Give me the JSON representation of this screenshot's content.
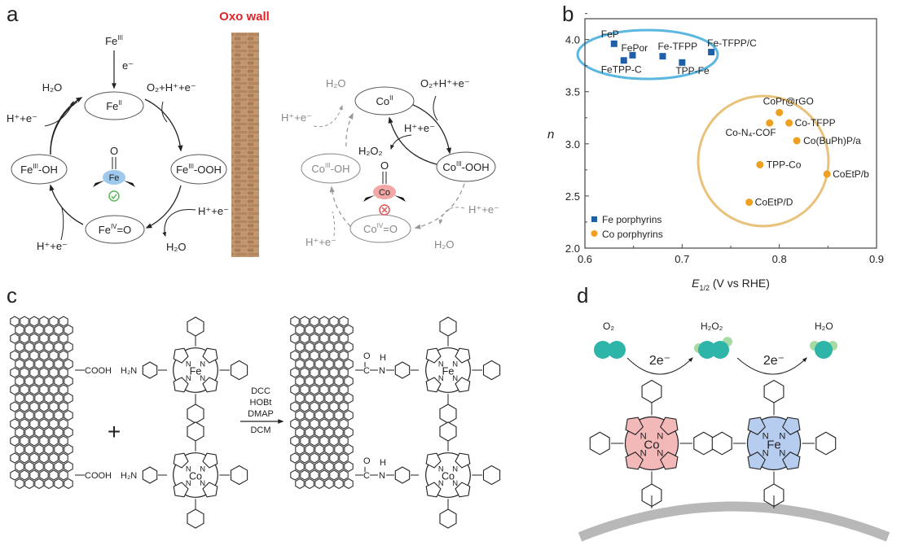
{
  "panels": {
    "a": "a",
    "b": "b",
    "c": "c",
    "d": "d"
  },
  "panel_a": {
    "oxo_wall": "Oxo wall",
    "fe_cycle": {
      "fe_iii": [
        "Fe",
        "III",
        ""
      ],
      "e_minus": "e⁻",
      "fe_ii": [
        "Fe",
        "II",
        ""
      ],
      "fe_iii_ooh": [
        "Fe",
        "III",
        "-OOH"
      ],
      "fe_iii_oh": [
        "Fe",
        "III",
        "-OH"
      ],
      "fe_iv_o": [
        "Fe",
        "IV",
        "=O"
      ],
      "o2_h_e": "O₂+H⁺+e⁻",
      "h_e": "H⁺+e⁻",
      "h2o": "H₂O",
      "center_metal": "Fe",
      "center_oxo": "O",
      "status": "check"
    },
    "co_cycle": {
      "co_ii": [
        "Co",
        "II",
        ""
      ],
      "co_iii_ooh": [
        "Co",
        "III",
        "-OOH"
      ],
      "co_iii_oh": [
        "Co",
        "III",
        "-OH"
      ],
      "co_iv_o": [
        "Co",
        "IV",
        "=O"
      ],
      "o2_h_e": "O₂+H⁺+e⁻",
      "h_e": "H⁺+e⁻",
      "h2o": "H₂O",
      "h2o2": "H₂O₂",
      "center_metal": "Co",
      "center_oxo": "O",
      "status": "cross"
    },
    "colors": {
      "wall_label": "#e0242a",
      "fe_highlight": "#9ec9ec",
      "co_highlight": "#f2a6a6",
      "check": "#5cb85c",
      "cross": "#e05555"
    }
  },
  "chart_data": {
    "type": "scatter",
    "xlabel": "E1/2 (V vs RHE)",
    "xlabel_parts": [
      "E",
      "1/2",
      " (V vs RHE)"
    ],
    "ylabel": "n",
    "xlim": [
      0.6,
      0.9
    ],
    "ylim": [
      2.0,
      4.2
    ],
    "xticks": [
      "0.6",
      "0.7",
      "0.8",
      "0.9"
    ],
    "yticks": [
      "2.0",
      "2.5",
      "3.0",
      "3.5",
      "4.0"
    ],
    "grid": false,
    "legend_position": "bottom-left",
    "series": [
      {
        "name": "Fe porphyrins",
        "marker": "square",
        "color": "#1f5fa8",
        "enclosure_color": "#5bb7e0",
        "points": [
          {
            "label": "FeP",
            "x": 0.63,
            "y": 3.96
          },
          {
            "label": "FePor",
            "x": 0.649,
            "y": 3.85
          },
          {
            "label": "FeTPP-C",
            "x": 0.64,
            "y": 3.8
          },
          {
            "label": "Fe-TFPP",
            "x": 0.68,
            "y": 3.84
          },
          {
            "label": "TPP-Fe",
            "x": 0.7,
            "y": 3.78
          },
          {
            "label": "Fe-TFPP/C",
            "x": 0.73,
            "y": 3.88
          }
        ]
      },
      {
        "name": "Co porphyrins",
        "marker": "circle",
        "color": "#f0a020",
        "enclosure_color": "#e8c27a",
        "points": [
          {
            "label": "CoPr@rGO",
            "x": 0.8,
            "y": 3.3
          },
          {
            "label": "Co-N₄-COF",
            "x": 0.79,
            "y": 3.2
          },
          {
            "label": "Co-TFPP",
            "x": 0.81,
            "y": 3.2
          },
          {
            "label": "Co(BuPh)P/a",
            "x": 0.818,
            "y": 3.03
          },
          {
            "label": "TPP-Co",
            "x": 0.78,
            "y": 2.8
          },
          {
            "label": "CoEtP/b",
            "x": 0.849,
            "y": 2.71
          },
          {
            "label": "CoEtP/D",
            "x": 0.769,
            "y": 2.44
          }
        ]
      }
    ]
  },
  "panel_c": {
    "cooh": "COOH",
    "h2n": "H₂N",
    "metal_top": "Fe",
    "metal_bottom": "Co",
    "n": "N",
    "plus": "+",
    "reagents": [
      "DCC",
      "HOBt",
      "DMAP"
    ],
    "solvent": "DCM",
    "amide_o": "O",
    "amide_h": "H",
    "amide_c": "C",
    "amide_n": "N"
  },
  "panel_d": {
    "o2": "O₂",
    "h2o2": "H₂O₂",
    "h2o": "H₂O",
    "step1": "2e⁻",
    "step2": "2e⁻",
    "metal_left": "Co",
    "metal_right": "Fe",
    "n": "N",
    "colors": {
      "molecule": "#2cb5a8",
      "molecule_light": "#a8dba4",
      "co_ring": "#f3b8b8",
      "fe_ring": "#b7cdf0",
      "surface": "#b8b8b8"
    }
  }
}
